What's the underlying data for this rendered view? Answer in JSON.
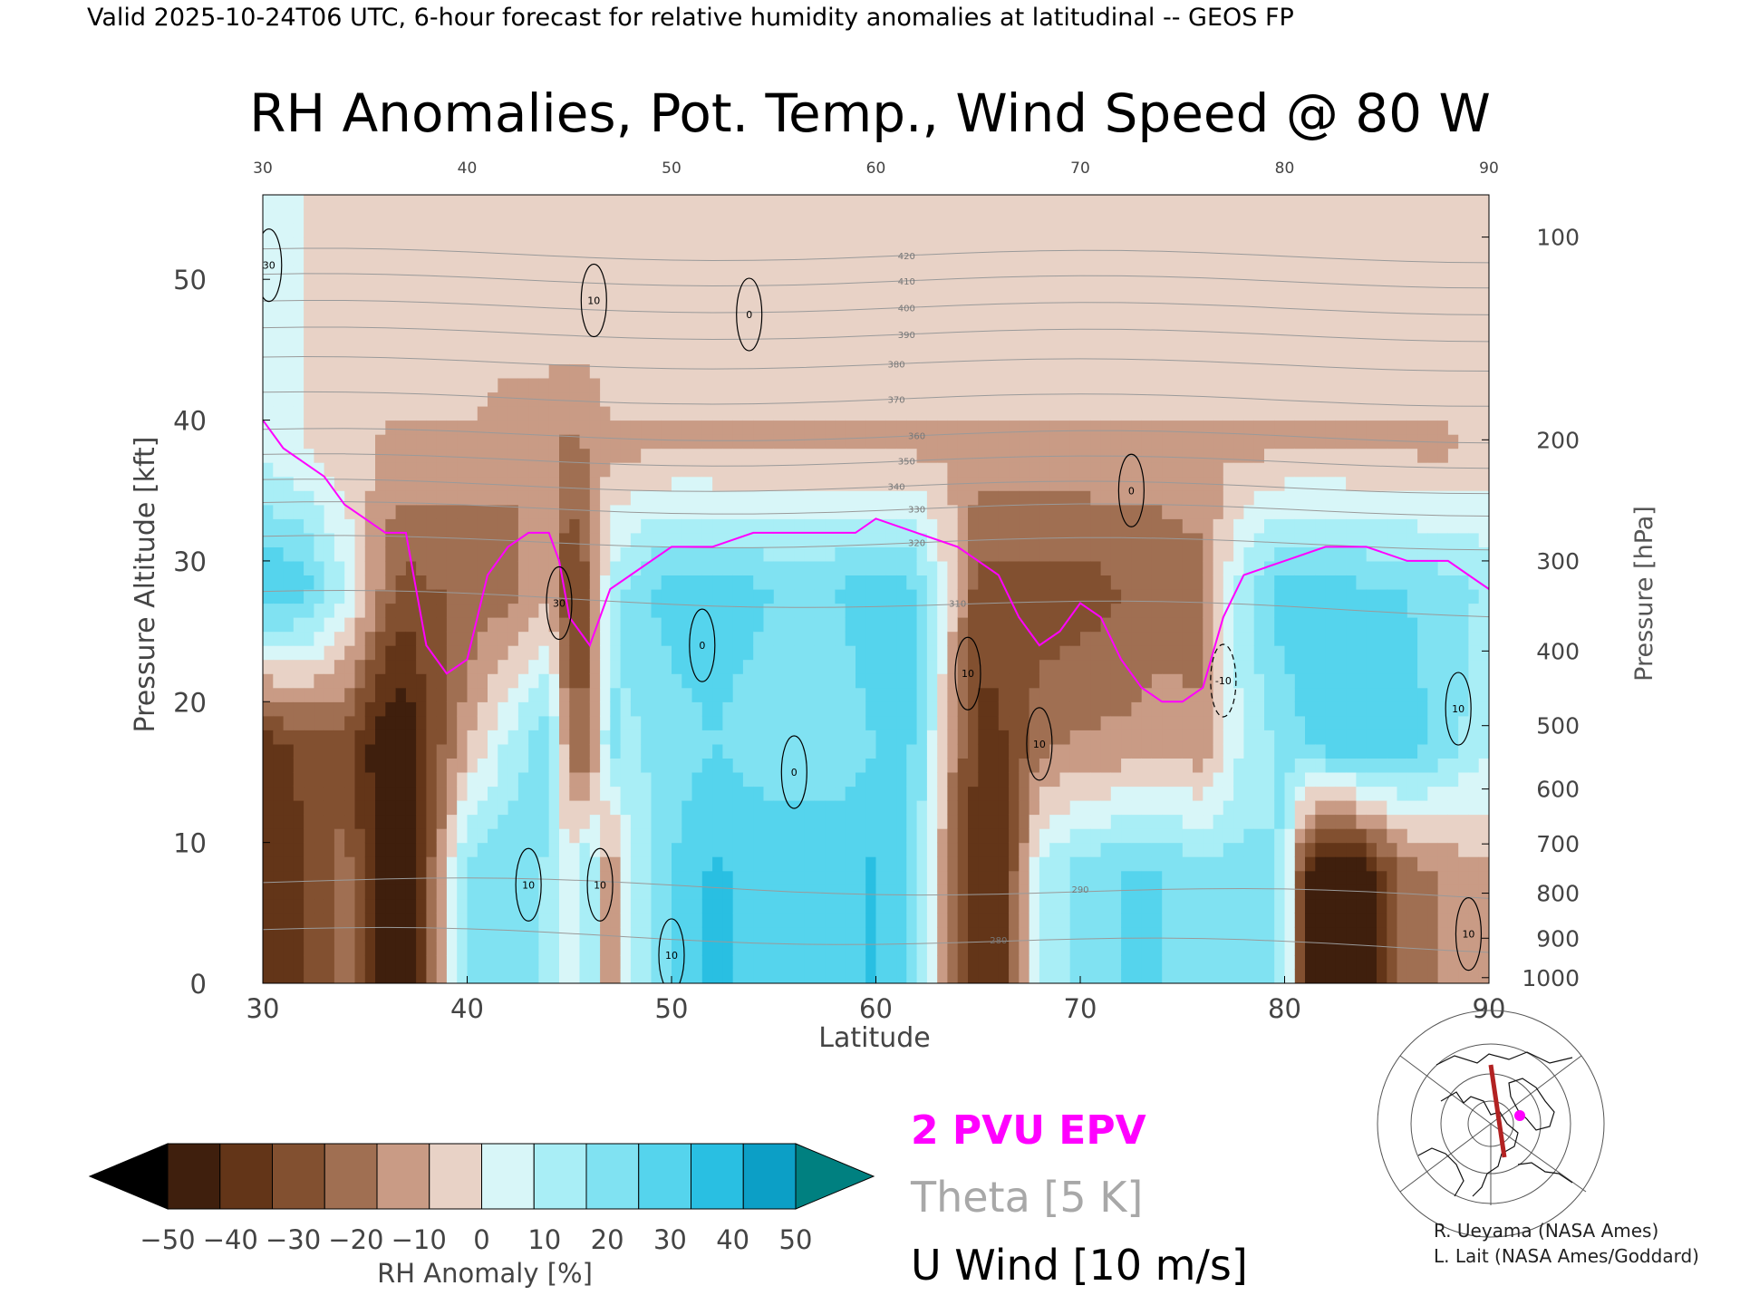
{
  "header": {
    "valid_line": "Valid 2025-10-24T06 UTC, 6-hour forecast for relative humidity anomalies at latitudinal -- GEOS FP"
  },
  "chart_data": {
    "type": "heatmap",
    "title": "RH Anomalies, Pot. Temp., Wind Speed @ 80 W",
    "xlabel": "Latitude",
    "ylabel_left": "Pressure Altitude [kft]",
    "ylabel_right": "Pressure [hPa]",
    "xlim": [
      30,
      90
    ],
    "ylim_kft": [
      0,
      56
    ],
    "x_ticks": [
      "30",
      "40",
      "50",
      "60",
      "70",
      "80",
      "90"
    ],
    "x_ticks_top": [
      "30",
      "40",
      "50",
      "60",
      "70",
      "80",
      "90"
    ],
    "y_ticks_left": [
      {
        "kft": 0,
        "label": "0"
      },
      {
        "kft": 10,
        "label": "10"
      },
      {
        "kft": 20,
        "label": "20"
      },
      {
        "kft": 30,
        "label": "30"
      },
      {
        "kft": 40,
        "label": "40"
      },
      {
        "kft": 50,
        "label": "50"
      }
    ],
    "y_ticks_right": [
      {
        "kft": 53.0,
        "label": "100"
      },
      {
        "kft": 38.6,
        "label": "200"
      },
      {
        "kft": 30.0,
        "label": "300"
      },
      {
        "kft": 23.6,
        "label": "400"
      },
      {
        "kft": 18.3,
        "label": "500"
      },
      {
        "kft": 13.8,
        "label": "600"
      },
      {
        "kft": 9.9,
        "label": "700"
      },
      {
        "kft": 6.4,
        "label": "800"
      },
      {
        "kft": 3.2,
        "label": "900"
      },
      {
        "kft": 0.4,
        "label": "1000"
      }
    ],
    "rh_anomaly_profile": {
      "lat": [
        30,
        32,
        34,
        36,
        37,
        38,
        40,
        42,
        44,
        45,
        46,
        47,
        48,
        50,
        52,
        55,
        58,
        60,
        62,
        64,
        65,
        66,
        67,
        68,
        70,
        72,
        74,
        76,
        78,
        80,
        81,
        82,
        83,
        84,
        86,
        88,
        90
      ],
      "low": [
        -40,
        -35,
        -20,
        -50,
        -50,
        -30,
        20,
        25,
        15,
        0,
        20,
        -20,
        10,
        25,
        35,
        30,
        30,
        35,
        20,
        -30,
        -40,
        -40,
        -20,
        10,
        20,
        25,
        25,
        20,
        20,
        15,
        -40,
        -50,
        -50,
        -45,
        -20,
        -15,
        -10
      ],
      "mid": [
        -40,
        -30,
        -30,
        -50,
        -50,
        -35,
        -10,
        10,
        25,
        -20,
        -25,
        20,
        15,
        20,
        25,
        20,
        20,
        25,
        25,
        -20,
        -35,
        -35,
        -30,
        -20,
        -15,
        -15,
        -10,
        -15,
        10,
        20,
        25,
        30,
        30,
        30,
        30,
        20,
        10
      ],
      "upper": [
        35,
        30,
        10,
        -20,
        -30,
        -25,
        -25,
        -20,
        -10,
        -35,
        -25,
        10,
        20,
        30,
        30,
        25,
        25,
        30,
        25,
        -10,
        -30,
        -30,
        -30,
        -30,
        -30,
        -25,
        -25,
        -20,
        15,
        30,
        30,
        30,
        30,
        25,
        25,
        20,
        15
      ],
      "top": [
        5,
        0,
        -5,
        -10,
        -10,
        -10,
        -10,
        -15,
        -15,
        -20,
        -15,
        -10,
        -10,
        -10,
        -10,
        -10,
        -10,
        -10,
        -10,
        -10,
        -10,
        -10,
        -10,
        -10,
        -10,
        -10,
        -10,
        -10,
        -10,
        -10,
        -10,
        -10,
        -10,
        -10,
        -10,
        -10,
        -5
      ]
    },
    "rh_anomaly_levels_kft": {
      "low": 8,
      "mid": 17,
      "upper": 28,
      "top": 38
    },
    "theta_contours_K": [
      "270",
      "280",
      "290",
      "300",
      "310",
      "320",
      "330",
      "340",
      "350",
      "360",
      "370",
      "380",
      "390",
      "400",
      "410",
      "420"
    ],
    "theta_label_positions": [
      {
        "K": "420",
        "lat": 61.5,
        "kft": 51.7
      },
      {
        "K": "410",
        "lat": 61.5,
        "kft": 49.9
      },
      {
        "K": "400",
        "lat": 61.5,
        "kft": 48.0
      },
      {
        "K": "390",
        "lat": 61.5,
        "kft": 46.1
      },
      {
        "K": "380",
        "lat": 61.0,
        "kft": 44.0
      },
      {
        "K": "370",
        "lat": 61.0,
        "kft": 41.5
      },
      {
        "K": "360",
        "lat": 62.0,
        "kft": 38.9
      },
      {
        "K": "350",
        "lat": 61.5,
        "kft": 37.1
      },
      {
        "K": "340",
        "lat": 61.0,
        "kft": 35.3
      },
      {
        "K": "330",
        "lat": 62.0,
        "kft": 33.7
      },
      {
        "K": "320",
        "lat": 62.0,
        "kft": 31.3
      },
      {
        "K": "310",
        "lat": 64.0,
        "kft": 27.0
      },
      {
        "K": "290",
        "lat": 70.0,
        "kft": 6.7
      },
      {
        "K": "280",
        "lat": 66.0,
        "kft": 3.1
      }
    ],
    "pv_2pvu_line": {
      "lat": [
        30,
        31,
        32,
        33,
        34,
        35,
        36,
        37,
        37.5,
        38,
        39,
        40,
        41,
        42,
        43,
        44,
        44.5,
        45,
        46,
        47,
        48,
        49,
        50,
        52,
        54,
        56,
        58,
        59,
        60,
        62,
        64,
        65,
        66,
        67,
        68,
        69,
        70,
        71,
        72,
        73,
        74,
        75,
        76,
        77,
        78,
        80,
        82,
        84,
        86,
        88,
        89,
        90
      ],
      "kft": [
        40,
        38,
        37,
        36,
        34,
        33,
        32,
        32,
        28,
        24,
        22,
        23,
        29,
        31,
        32,
        32,
        30,
        26,
        24,
        28,
        29,
        30,
        31,
        31,
        32,
        32,
        32,
        32,
        33,
        32,
        31,
        30,
        29,
        26,
        24,
        25,
        27,
        26,
        23,
        21,
        20,
        20,
        21,
        26,
        29,
        30,
        31,
        31,
        30,
        30,
        29,
        28
      ]
    },
    "u_wind_contours": [
      {
        "label": "30",
        "lat": 30.3,
        "kft": 51
      },
      {
        "label": "30",
        "lat": 44.5,
        "kft": 27
      },
      {
        "label": "10",
        "lat": 46.2,
        "kft": 48.5
      },
      {
        "label": "10",
        "lat": 64.5,
        "kft": 22
      },
      {
        "label": "10",
        "lat": 68.0,
        "kft": 17
      },
      {
        "label": "0",
        "lat": 53.8,
        "kft": 47.5
      },
      {
        "label": "0",
        "lat": 51.5,
        "kft": 24
      },
      {
        "label": "0",
        "lat": 56.0,
        "kft": 15
      },
      {
        "label": "0",
        "lat": 72.5,
        "kft": 35
      },
      {
        "label": "-10",
        "lat": 77.0,
        "kft": 21.5
      },
      {
        "label": "10",
        "lat": 88.5,
        "kft": 19.5
      },
      {
        "label": "10",
        "lat": 43.0,
        "kft": 7
      },
      {
        "label": "10",
        "lat": 46.5,
        "kft": 7
      },
      {
        "label": "10",
        "lat": 50.0,
        "kft": 2
      },
      {
        "label": "10",
        "lat": 89.0,
        "kft": 3.5
      }
    ],
    "colorbar": {
      "ticks": [
        "−50",
        "−40",
        "−30",
        "−20",
        "−10",
        "0",
        "10",
        "20",
        "30",
        "40",
        "50"
      ],
      "label": "RH Anomaly [%]",
      "colors": [
        "#000000",
        "#3f1f0d",
        "#633518",
        "#825030",
        "#a06f52",
        "#c99b85",
        "#e8d2c6",
        "#d8f6f8",
        "#a9eef6",
        "#80e2f2",
        "#55d4ed",
        "#29bfe2",
        "#0c9fc6",
        "#008080"
      ]
    }
  },
  "legend": {
    "pv": "2 PVU EPV",
    "theta": "Theta [5 K]",
    "wind": "U Wind [10 m/s]",
    "pv_color": "#ff00ff",
    "theta_color": "#a0a0a0",
    "wind_color": "#000000"
  },
  "credits": {
    "line1": "R. Ueyama (NASA Ames)",
    "line2": "L. Lait (NASA Ames/Goddard)"
  }
}
